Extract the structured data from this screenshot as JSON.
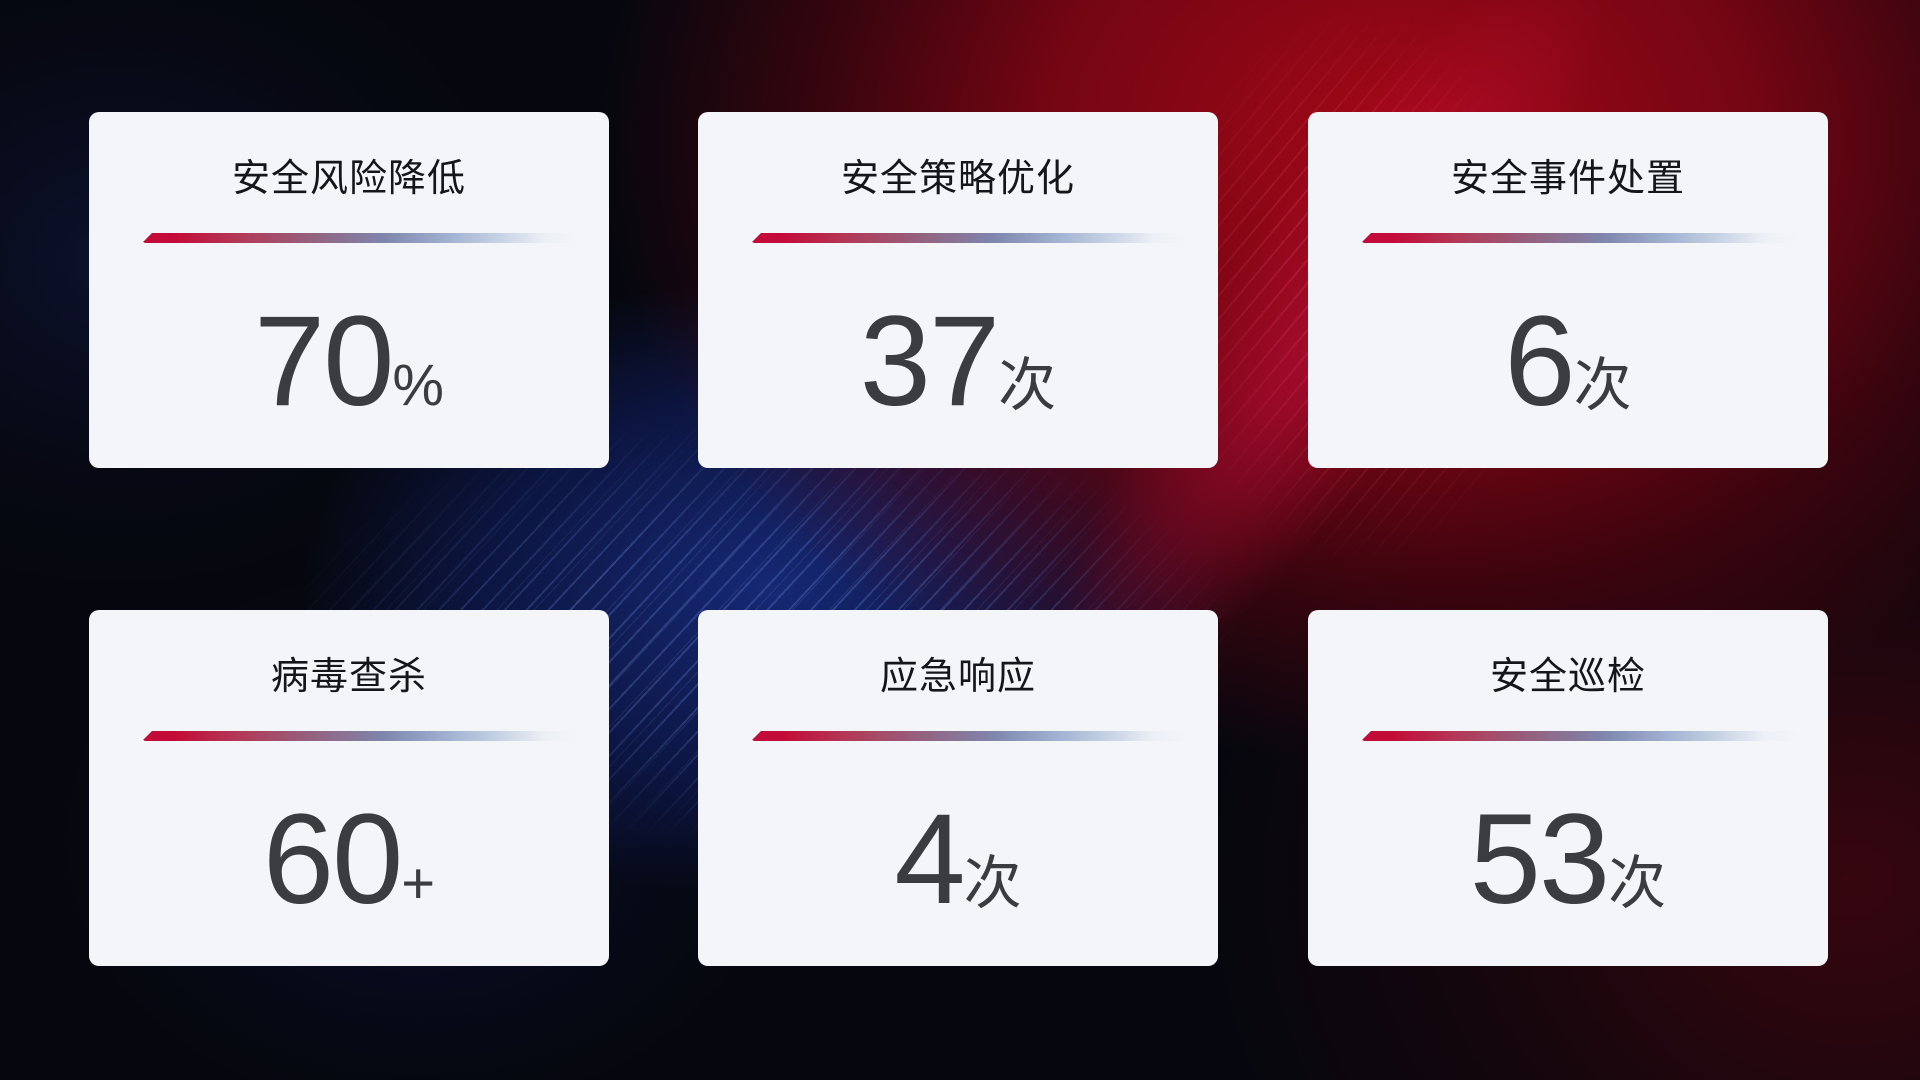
{
  "dashboard": {
    "cards": [
      {
        "title": "安全风险降低",
        "value": "70",
        "unit": "%"
      },
      {
        "title": "安全策略优化",
        "value": "37",
        "unit": "次"
      },
      {
        "title": "安全事件处置",
        "value": "6",
        "unit": "次"
      },
      {
        "title": "病毒查杀",
        "value": "60",
        "unit": "+"
      },
      {
        "title": "应急响应",
        "value": "4",
        "unit": "次"
      },
      {
        "title": "安全巡检",
        "value": "53",
        "unit": "次"
      }
    ],
    "colors": {
      "accent_red": "#c30b39",
      "accent_blue_gray": "#9fb0d0",
      "card_background": "#f4f5f8",
      "title_text": "#15161a",
      "value_text": "#3b3c40",
      "background_red_glow": "#8c0615",
      "background_blue_glow": "#16296f",
      "background_base": "#06070e"
    }
  }
}
